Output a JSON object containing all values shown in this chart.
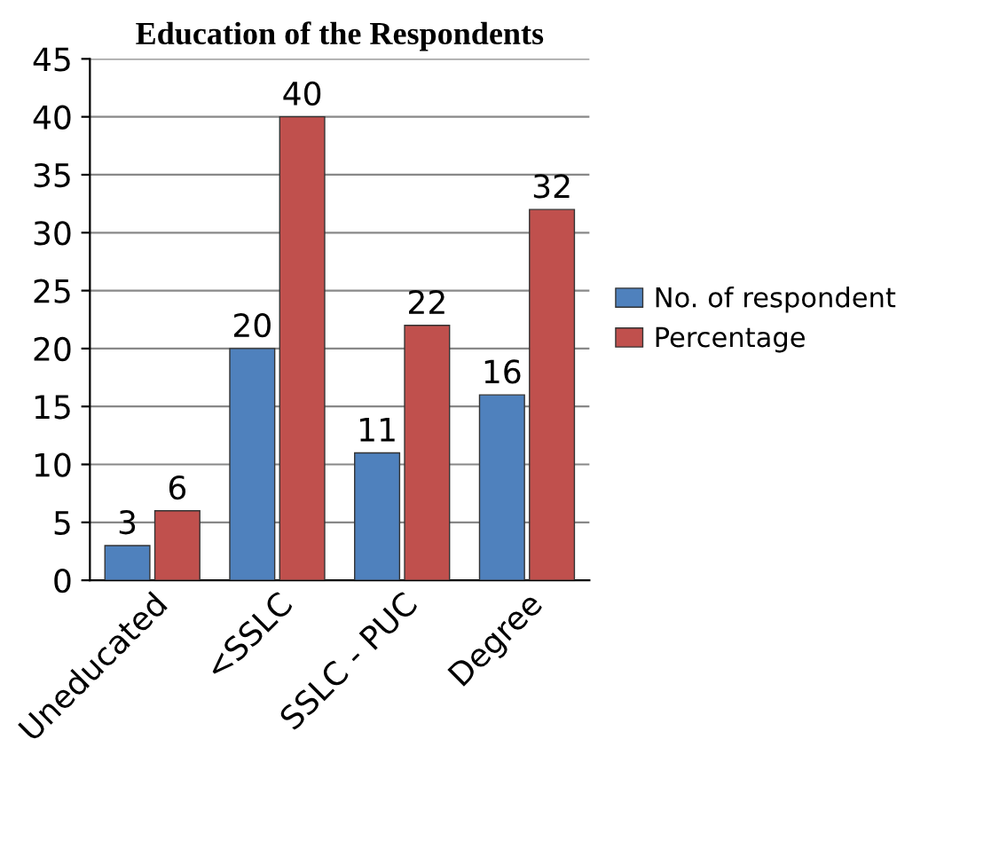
{
  "chart_data": {
    "type": "bar",
    "title": "Education of the Respondents",
    "categories": [
      "Uneducated",
      "<SSLC",
      "SSLC - PUC",
      "Degree"
    ],
    "series": [
      {
        "name": "No. of respondent",
        "color": "#4f81bd",
        "values": [
          3,
          20,
          11,
          16
        ]
      },
      {
        "name": "Percentage",
        "color": "#c0504d",
        "values": [
          6,
          40,
          22,
          32
        ]
      }
    ],
    "ylim": [
      0,
      45
    ],
    "yticks": [
      0,
      5,
      10,
      15,
      20,
      25,
      30,
      35,
      40,
      45
    ],
    "grid": "y",
    "legend": "right",
    "data_labels": true
  }
}
